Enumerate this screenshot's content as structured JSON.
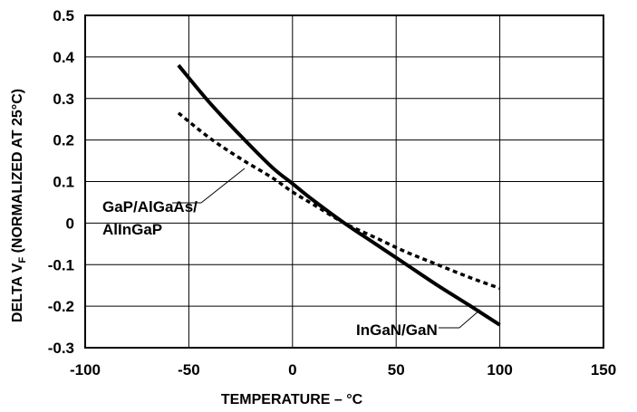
{
  "chart_data": {
    "type": "line",
    "xlabel": "TEMPERATURE – °C",
    "ylabel_main": "DELTA V",
    "ylabel_sub": "F",
    "ylabel_rest": " (NORMALIZED AT 25°C)",
    "xlim": [
      -100,
      150
    ],
    "ylim": [
      -0.3,
      0.5
    ],
    "x_ticks": [
      -100,
      -50,
      0,
      50,
      100,
      150
    ],
    "x_tick_labels": [
      "-100",
      "-50",
      "0",
      "50",
      "100",
      "150"
    ],
    "y_ticks": [
      0.5,
      0.4,
      0.3,
      0.2,
      0.1,
      0,
      -0.1,
      -0.2,
      -0.3
    ],
    "y_tick_labels": [
      "0.5",
      "0.4",
      "0.3",
      "0.2",
      "0.1",
      "0",
      "-0.1",
      "-0.2",
      "-0.3"
    ],
    "grid": true,
    "series": [
      {
        "name": "InGaN/GaN",
        "style": "solid",
        "color": "#000000",
        "x": [
          -55,
          -40,
          -25,
          -10,
          0,
          10,
          25,
          40,
          55,
          70,
          85,
          100
        ],
        "y": [
          0.38,
          0.29,
          0.21,
          0.135,
          0.095,
          0.055,
          0.0,
          -0.05,
          -0.1,
          -0.15,
          -0.197,
          -0.245
        ]
      },
      {
        "name": "GaP/AlGaAs/\nAlInGaP",
        "style": "dashed",
        "color": "#000000",
        "x": [
          -55,
          -40,
          -25,
          -10,
          0,
          10,
          25,
          40,
          55,
          70,
          85,
          100
        ],
        "y": [
          0.265,
          0.205,
          0.155,
          0.11,
          0.075,
          0.045,
          0.0,
          -0.035,
          -0.07,
          -0.1,
          -0.13,
          -0.157
        ]
      }
    ],
    "annotations": [
      {
        "text": "GaP/AlGaAs/",
        "line": 1,
        "series": 1
      },
      {
        "text": "AlInGaP",
        "line": 2,
        "series": 1
      },
      {
        "text": "InGaN/GaN",
        "series": 0
      }
    ]
  }
}
